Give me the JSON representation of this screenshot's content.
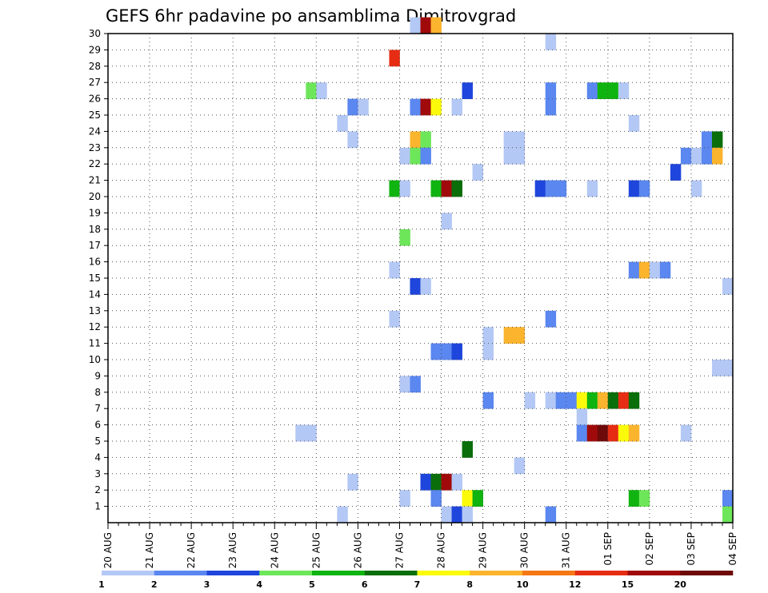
{
  "chart_data": {
    "type": "heatmap",
    "title": "GEFS 6hr padavine po ansamblima Dimitrovgrad",
    "xlabel": "",
    "ylabel": "",
    "x_ticks": [
      "20 AUG",
      "21 AUG",
      "22 AUG",
      "23 AUG",
      "24 AUG",
      "25 AUG",
      "26 AUG",
      "27 AUG",
      "28 AUG",
      "29 AUG",
      "30 AUG",
      "31 AUG",
      "01 SEP",
      "02 SEP",
      "03 SEP",
      "04 SEP"
    ],
    "y_ticks": [
      "1",
      "2",
      "3",
      "4",
      "5",
      "6",
      "7",
      "8",
      "9",
      "10",
      "11",
      "12",
      "13",
      "14",
      "15",
      "16",
      "17",
      "18",
      "19",
      "20",
      "21",
      "22",
      "23",
      "24",
      "25",
      "26",
      "27",
      "28",
      "29",
      "30"
    ],
    "xlim": [
      0,
      60
    ],
    "ylim": [
      0,
      30
    ],
    "grid": true,
    "legend": {
      "placement": "bottom",
      "labels": [
        "1",
        "2",
        "3",
        "4",
        "5",
        "6",
        "7",
        "8",
        "10",
        "12",
        "15",
        "20"
      ],
      "colors": [
        "#b4c8f5",
        "#5a87f0",
        "#1e46dc",
        "#6ee65a",
        "#10b410",
        "#0a6e0a",
        "#fafa0a",
        "#fab42d",
        "#f57814",
        "#e62d14",
        "#a00a0a",
        "#6e0a0a"
      ]
    },
    "cells": [
      [
        29,
        30,
        1
      ],
      [
        30,
        30,
        11
      ],
      [
        31,
        30,
        8
      ],
      [
        42,
        29,
        1
      ],
      [
        27,
        28,
        10
      ],
      [
        19,
        26,
        4
      ],
      [
        20,
        26,
        1
      ],
      [
        34,
        26,
        3
      ],
      [
        42,
        26,
        2
      ],
      [
        46,
        26,
        2
      ],
      [
        47,
        26,
        5
      ],
      [
        48,
        26,
        5
      ],
      [
        49,
        26,
        1
      ],
      [
        23,
        25,
        2
      ],
      [
        24,
        25,
        1
      ],
      [
        29,
        25,
        2
      ],
      [
        30,
        25,
        11
      ],
      [
        31,
        25,
        7
      ],
      [
        33,
        25,
        1
      ],
      [
        42,
        25,
        2
      ],
      [
        22,
        24,
        1
      ],
      [
        50,
        24,
        1
      ],
      [
        23,
        23,
        1
      ],
      [
        29,
        23,
        8
      ],
      [
        30,
        23,
        4
      ],
      [
        38,
        23,
        1
      ],
      [
        39,
        23,
        1
      ],
      [
        57,
        23,
        2
      ],
      [
        58,
        23,
        6
      ],
      [
        28,
        22,
        1
      ],
      [
        29,
        22,
        4
      ],
      [
        30,
        22,
        2
      ],
      [
        38,
        22,
        1
      ],
      [
        39,
        22,
        1
      ],
      [
        55,
        22,
        2
      ],
      [
        56,
        22,
        1
      ],
      [
        57,
        22,
        2
      ],
      [
        58,
        22,
        8
      ],
      [
        35,
        21,
        1
      ],
      [
        54,
        21,
        3
      ],
      [
        27,
        20,
        5
      ],
      [
        28,
        20,
        1
      ],
      [
        31,
        20,
        5
      ],
      [
        32,
        20,
        11
      ],
      [
        33,
        20,
        6
      ],
      [
        41,
        20,
        3
      ],
      [
        42,
        20,
        2
      ],
      [
        43,
        20,
        2
      ],
      [
        46,
        20,
        1
      ],
      [
        50,
        20,
        3
      ],
      [
        51,
        20,
        2
      ],
      [
        56,
        20,
        1
      ],
      [
        32,
        18,
        1
      ],
      [
        28,
        17,
        4
      ],
      [
        27,
        15,
        1
      ],
      [
        50,
        15,
        2
      ],
      [
        51,
        15,
        8
      ],
      [
        52,
        15,
        1
      ],
      [
        53,
        15,
        2
      ],
      [
        29,
        14,
        3
      ],
      [
        30,
        14,
        1
      ],
      [
        59,
        14,
        1
      ],
      [
        27,
        12,
        1
      ],
      [
        42,
        12,
        2
      ],
      [
        38,
        11,
        8
      ],
      [
        39,
        11,
        8
      ],
      [
        36,
        11,
        1
      ],
      [
        31,
        10,
        2
      ],
      [
        32,
        10,
        2
      ],
      [
        33,
        10,
        3
      ],
      [
        36,
        10,
        1
      ],
      [
        59,
        9,
        1
      ],
      [
        58,
        9,
        1
      ],
      [
        28,
        8,
        1
      ],
      [
        29,
        8,
        2
      ],
      [
        36,
        7,
        2
      ],
      [
        40,
        7,
        1
      ],
      [
        42,
        7,
        1
      ],
      [
        43,
        7,
        2
      ],
      [
        44,
        7,
        2
      ],
      [
        45,
        7,
        7
      ],
      [
        46,
        7,
        5
      ],
      [
        47,
        7,
        8
      ],
      [
        48,
        7,
        6
      ],
      [
        49,
        7,
        10
      ],
      [
        50,
        7,
        6
      ],
      [
        45,
        6,
        1
      ],
      [
        18,
        5,
        1
      ],
      [
        19,
        5,
        1
      ],
      [
        45,
        5,
        2
      ],
      [
        46,
        5,
        11
      ],
      [
        47,
        5,
        12
      ],
      [
        48,
        5,
        10
      ],
      [
        49,
        5,
        7
      ],
      [
        50,
        5,
        8
      ],
      [
        55,
        5,
        1
      ],
      [
        34,
        4,
        6
      ],
      [
        39,
        3,
        1
      ],
      [
        23,
        2,
        1
      ],
      [
        30,
        2,
        3
      ],
      [
        31,
        2,
        6
      ],
      [
        32,
        2,
        11
      ],
      [
        33,
        2,
        1
      ],
      [
        28,
        1,
        1
      ],
      [
        31,
        1,
        2
      ],
      [
        34,
        1,
        7
      ],
      [
        35,
        1,
        5
      ],
      [
        50,
        1,
        5
      ],
      [
        51,
        1,
        4
      ],
      [
        59,
        1,
        2
      ],
      [
        22,
        0,
        1
      ],
      [
        32,
        0,
        1
      ],
      [
        33,
        0,
        3
      ],
      [
        34,
        0,
        1
      ],
      [
        42,
        0,
        2
      ],
      [
        59,
        0,
        4
      ]
    ]
  }
}
